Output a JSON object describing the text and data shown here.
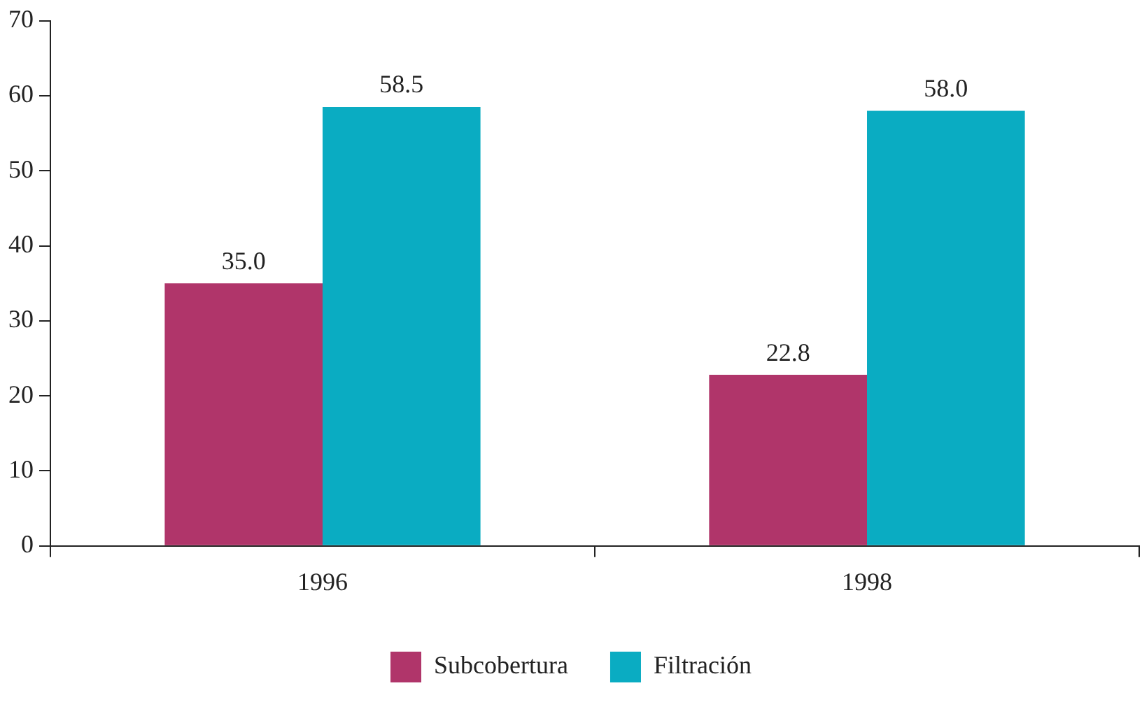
{
  "chart_data": {
    "type": "bar",
    "categories": [
      "1996",
      "1998"
    ],
    "series": [
      {
        "name": "Subcobertura",
        "color": "#b0356a",
        "values": [
          35.0,
          22.8
        ],
        "value_labels": [
          "35.0",
          "22.8"
        ]
      },
      {
        "name": "Filtración",
        "color": "#0aacc2",
        "values": [
          58.5,
          58.0
        ],
        "value_labels": [
          "58.5",
          "58.0"
        ]
      }
    ],
    "ylim": [
      0,
      70
    ],
    "yticks": [
      0,
      10,
      20,
      30,
      40,
      50,
      60,
      70
    ],
    "grid": false,
    "legend": "bottom"
  }
}
